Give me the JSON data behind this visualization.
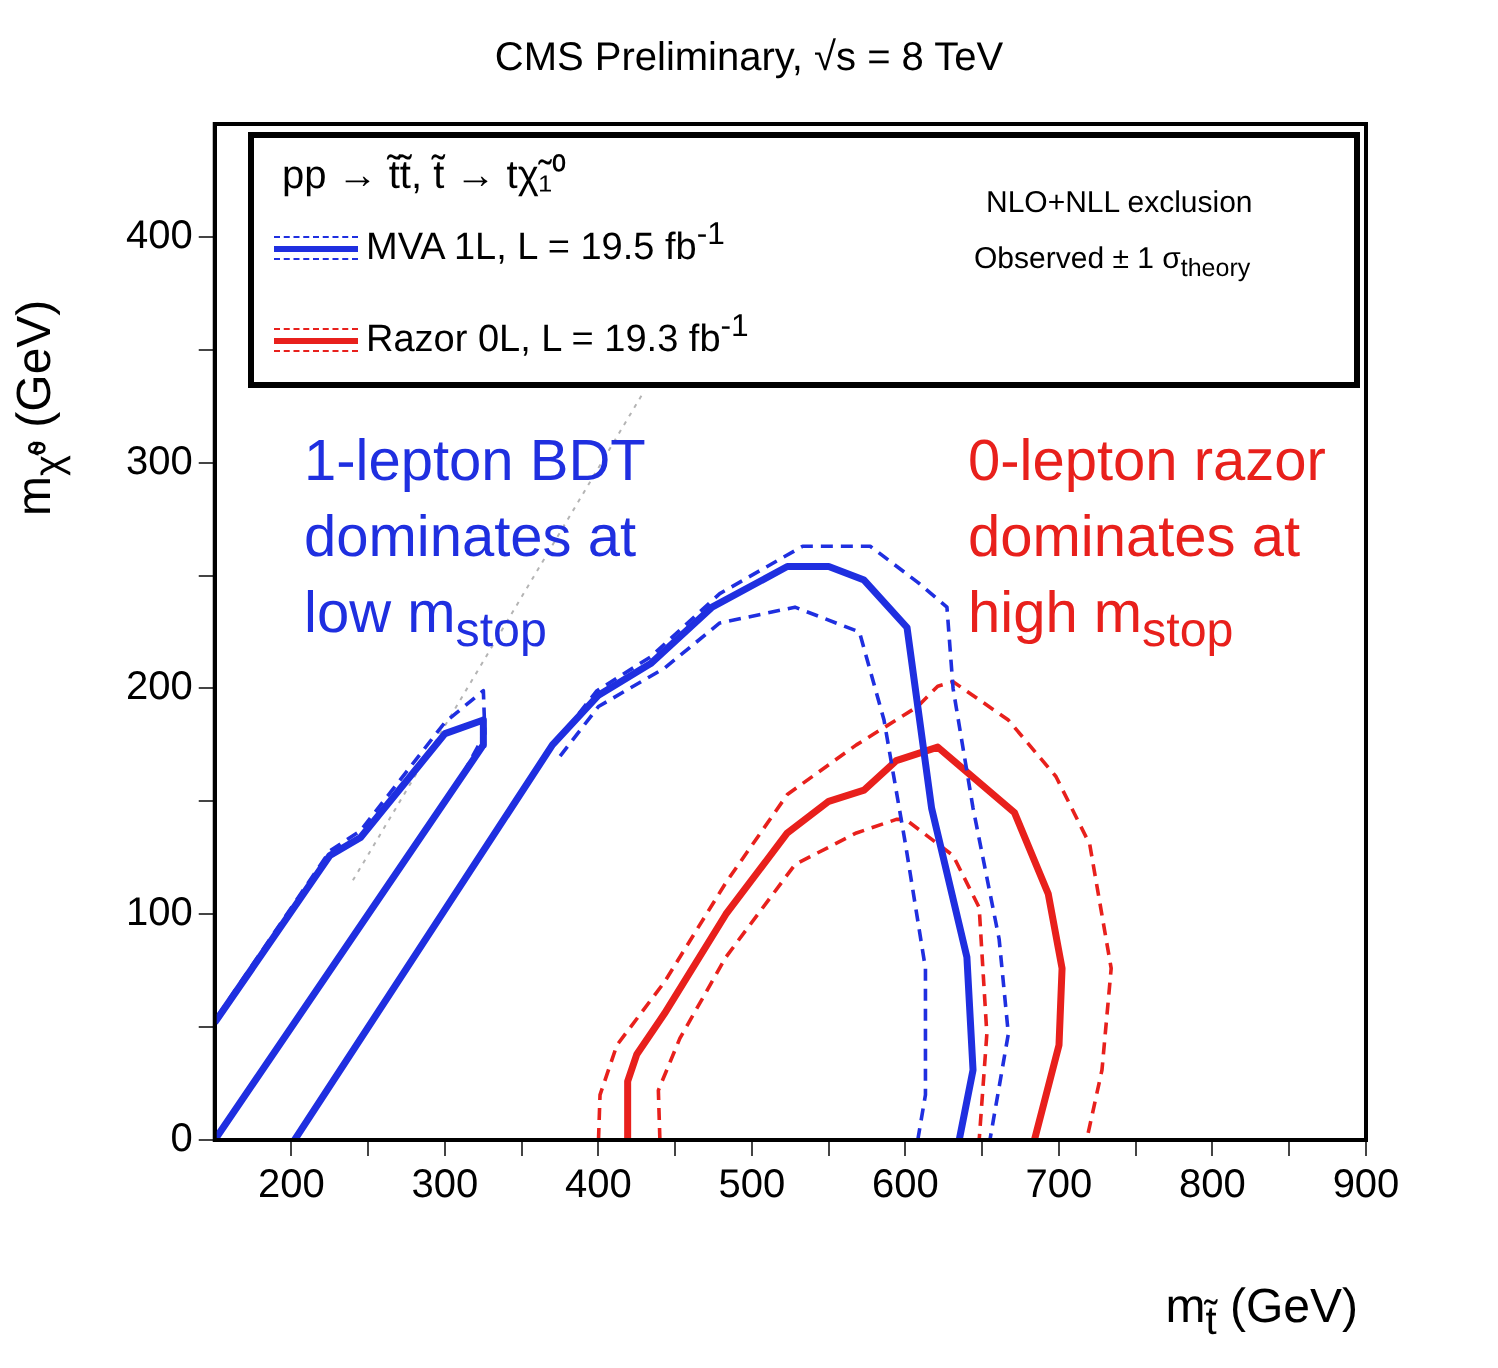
{
  "chart_data": {
    "type": "line",
    "title": "CMS Preliminary, √s = 8 TeV",
    "xlabel": "m$_{t̃}$ (GeV)",
    "ylabel": "m$_{χ̃⁰}$ (GeV)",
    "legend_title": "pp → t̃t̃, t̃ → tχ̃₁⁰",
    "legend": "top",
    "annotations": [
      "1-lepton BDT dominates at low m$_{stop}$",
      "0-lepton razor dominates at high m$_{stop}$",
      "NLO+NLL exclusion",
      "Observed ± 1 σ$_{theory}$"
    ],
    "xlim": [
      150,
      900
    ],
    "ylim": [
      0,
      450
    ],
    "xticks": [
      200,
      {
        "value": 250,
        "label": null
      },
      300,
      {
        "value": 350,
        "label": null
      },
      400,
      {
        "value": 450,
        "label": null
      },
      500,
      {
        "value": 550,
        "label": null
      },
      600,
      {
        "value": 650,
        "label": null
      },
      700,
      {
        "value": 750,
        "label": null
      },
      800,
      {
        "value": 850,
        "label": null
      },
      900
    ],
    "yticks": [
      0,
      {
        "value": 50,
        "label": null
      },
      100,
      {
        "value": 150,
        "label": null
      },
      200,
      {
        "value": 250,
        "label": null
      },
      300,
      {
        "value": 350,
        "label": null
      },
      400
    ],
    "marker": "none",
    "grid": false,
    "series": [
      {
        "name": "MVA 1L, L = 19.5 fb$^{-1}$",
        "color": "#1f2fe0",
        "line_style": "solid",
        "x": [
          202,
          370,
          400,
          434,
          474,
          523,
          550,
          573,
          601,
          617,
          640,
          644,
          635
        ],
        "values": [
          0,
          175,
          197,
          211,
          236,
          254,
          254,
          248,
          227,
          147,
          81,
          31,
          0
        ]
      },
      {
        "color": "#1f2fe0",
        "line_style": "solid",
        "x": [
          150,
          225,
          245,
          300,
          325,
          325,
          150
        ],
        "values": [
          52,
          126,
          134,
          180,
          186,
          175,
          0
        ]
      },
      {
        "color": "#1f2fe0",
        "line_style": "dashed",
        "x": [
          371,
          399,
          434,
          479,
          533,
          577,
          608,
          627,
          631,
          644,
          661,
          667,
          655
        ],
        "values": [
          175,
          199,
          214,
          242,
          263,
          263,
          247,
          236,
          200,
          147,
          89,
          47,
          0
        ]
      },
      {
        "color": "#1f2fe0",
        "line_style": "dashed",
        "x": [
          375,
          400,
          443,
          479,
          528,
          570,
          586,
          600,
          613,
          613,
          608
        ],
        "values": [
          170,
          192,
          209,
          229,
          236,
          225,
          186,
          131,
          76,
          20,
          0
        ]
      },
      {
        "color": "#1f2fe0",
        "line_style": "dashed",
        "x": [
          152,
          225,
          245,
          300,
          325,
          326,
          310
        ],
        "values": [
          55,
          128,
          137,
          185,
          199,
          180,
          160
        ]
      },
      {
        "name": "Razor 0L, L = 19.3 fb$^{-1}$",
        "color": "#e8201c",
        "line_style": "solid",
        "x": [
          419,
          419,
          425,
          443,
          483,
          523,
          550,
          573,
          594,
          621,
          671,
          693,
          702,
          700,
          684
        ],
        "values": [
          0,
          26,
          38,
          56,
          100,
          136,
          150,
          155,
          168,
          174,
          145,
          109,
          76,
          42,
          0
        ]
      },
      {
        "color": "#e8201c",
        "line_style": "dashed",
        "x": [
          400,
          401,
          412,
          443,
          483,
          523,
          568,
          608,
          621,
          631,
          667,
          698,
          720,
          734,
          728,
          718
        ],
        "values": [
          0,
          20,
          42,
          70,
          114,
          153,
          175,
          192,
          201,
          203,
          186,
          161,
          131,
          76,
          31,
          0
        ]
      },
      {
        "color": "#e8201c",
        "line_style": "dashed",
        "x": [
          440,
          439,
          453,
          483,
          528,
          568,
          594,
          600,
          631,
          648,
          653,
          648
        ],
        "values": [
          0,
          22,
          45,
          81,
          122,
          136,
          142,
          142,
          126,
          103,
          47,
          0
        ]
      },
      {
        "color": "#b4b4b4",
        "line_style": "dotted",
        "x": [
          240,
          430
        ],
        "values": [
          115,
          332
        ]
      }
    ]
  }
}
